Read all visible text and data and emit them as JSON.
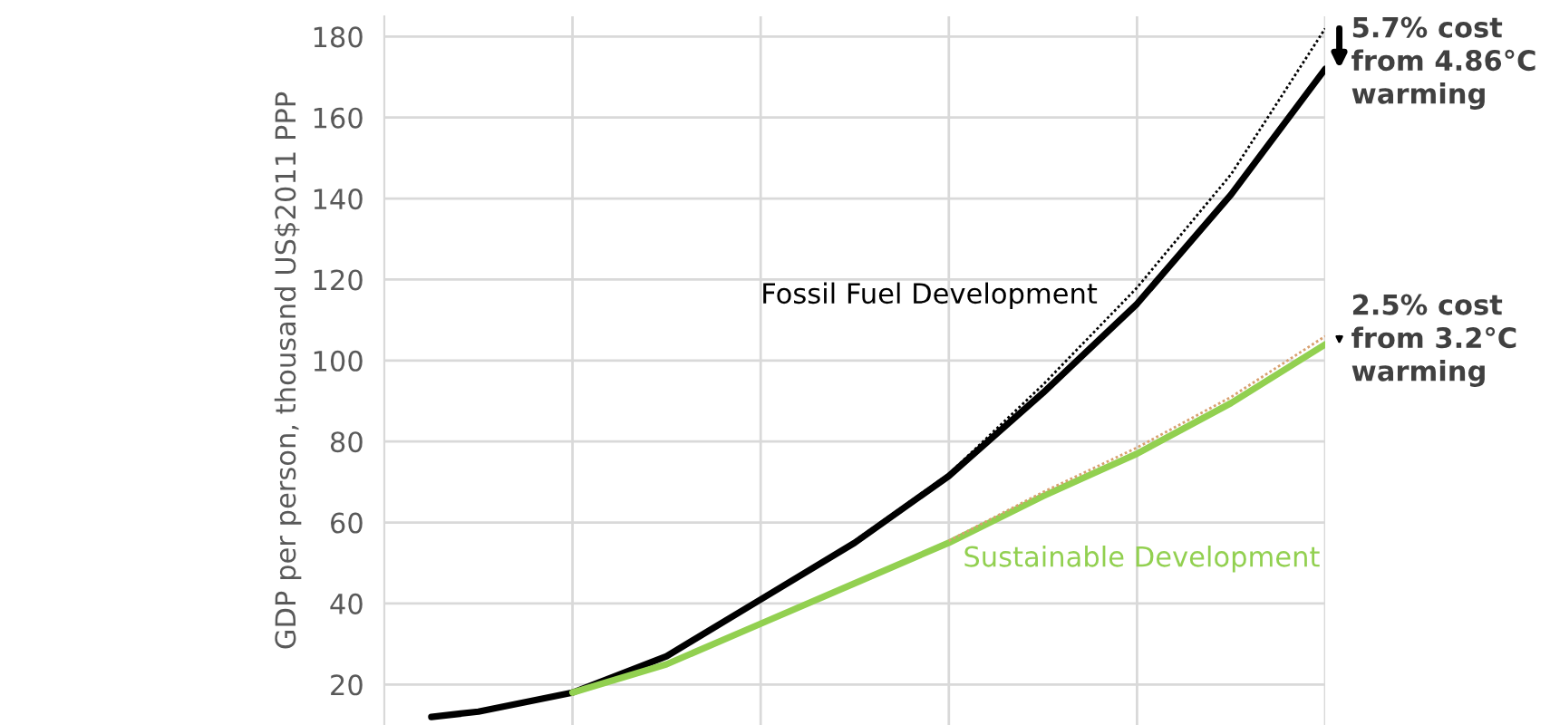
{
  "chart_data": {
    "type": "line",
    "ylabel": "GDP per person, thousand US$2011 PPP",
    "categories": [
      null,
      null,
      null,
      null,
      null,
      null,
      null,
      null,
      null,
      null,
      null,
      null,
      null,
      null,
      null,
      null,
      null,
      null,
      null,
      null
    ],
    "series": [
      {
        "color": "#000000",
        "line_style": "dotted",
        "values": [
          null,
          null,
          null,
          null,
          null,
          null,
          null,
          null,
          null,
          55.5,
          null,
          72,
          null,
          94,
          null,
          118,
          null,
          146,
          null,
          182
        ]
      },
      {
        "color": "#d8a070",
        "line_style": "dotted",
        "values": [
          null,
          null,
          null,
          null,
          null,
          null,
          null,
          null,
          null,
          null,
          null,
          55.5,
          null,
          67.5,
          null,
          78.5,
          null,
          91,
          null,
          106
        ]
      },
      {
        "name": "Fossil Fuel Development",
        "color": "#000000",
        "values": [
          12,
          13.3,
          null,
          18,
          null,
          27,
          null,
          41,
          null,
          55,
          null,
          71.5,
          null,
          92,
          null,
          114,
          null,
          141,
          null,
          172
        ]
      },
      {
        "name": "Sustainable Development",
        "color": "#92d050",
        "values": [
          null,
          null,
          null,
          18,
          null,
          25,
          null,
          35,
          null,
          45,
          null,
          55,
          null,
          66.5,
          null,
          77,
          null,
          89.5,
          null,
          104
        ]
      }
    ],
    "ylim": [
      10,
      185
    ],
    "yticks": [
      20,
      40,
      60,
      80,
      100,
      120,
      140,
      160,
      180
    ],
    "grid": true,
    "line_style": "solid",
    "marker": "none",
    "annotations": [
      "5.7% cost\nfrom 4.86°C\nwarming",
      "2.5% cost\nfrom 3.2°C\nwarming"
    ]
  }
}
